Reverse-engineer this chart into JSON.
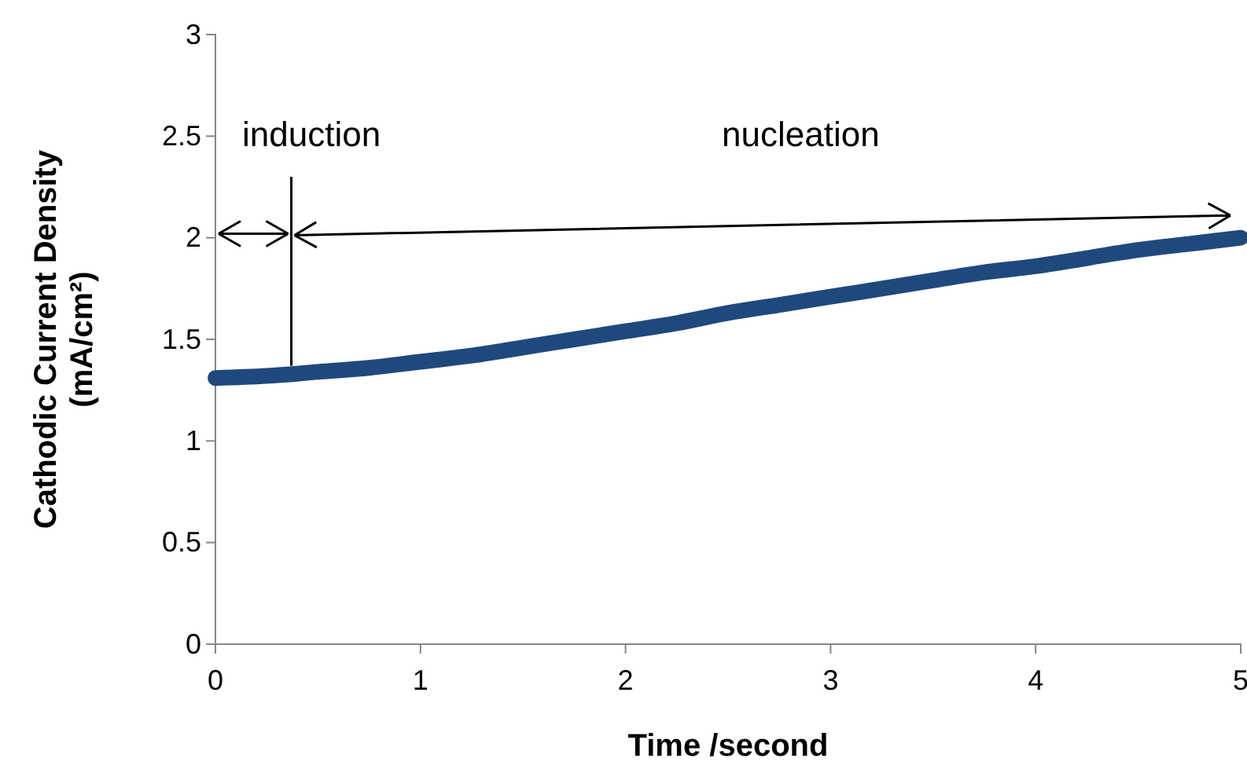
{
  "chart_data": {
    "type": "line",
    "xlabel": "Time /second",
    "ylabel": "Cathodic Current Density (mA/cm²)",
    "x": [
      0,
      0.25,
      0.5,
      0.75,
      1,
      1.25,
      1.5,
      1.75,
      2,
      2.25,
      2.5,
      2.75,
      3,
      3.25,
      3.5,
      3.75,
      4,
      4.25,
      4.5,
      4.75,
      5
    ],
    "series": [
      {
        "color": "#1f497d",
        "values": [
          1.31,
          1.32,
          1.34,
          1.36,
          1.39,
          1.42,
          1.46,
          1.5,
          1.54,
          1.58,
          1.63,
          1.67,
          1.71,
          1.75,
          1.79,
          1.83,
          1.86,
          1.9,
          1.94,
          1.97,
          2.0
        ]
      }
    ],
    "xlim": [
      0,
      5
    ],
    "xticks": [
      0,
      1,
      2,
      3,
      4,
      5
    ],
    "ylim": [
      0,
      3
    ],
    "yticks": [
      0,
      0.5,
      1,
      1.5,
      2,
      2.5,
      3
    ],
    "grid": false,
    "marker": "none",
    "line_style": "solid",
    "ref_lines": [
      {
        "axis": "x",
        "value": 0.37
      }
    ],
    "annotations": [
      "induction",
      "nucleation"
    ]
  }
}
